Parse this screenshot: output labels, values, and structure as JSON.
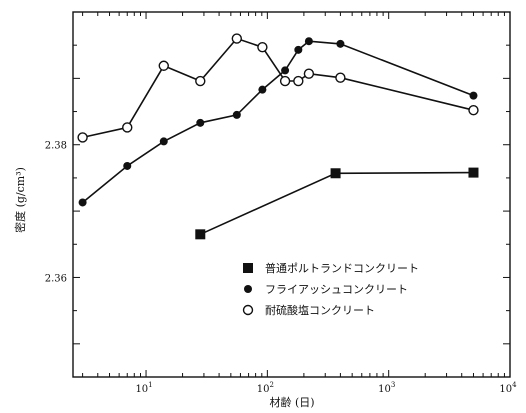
{
  "chart_data": {
    "type": "line",
    "xlabel": "材齢 (日)",
    "ylabel": "密度 (g/cm³)",
    "xscale": "log",
    "xlim": [
      2.5,
      10000
    ],
    "ylim": [
      2.345,
      2.4
    ],
    "x_tick_labels": [
      {
        "value": 10,
        "label": "10",
        "sup": "1"
      },
      {
        "value": 100,
        "label": "10",
        "sup": "2"
      },
      {
        "value": 1000,
        "label": "10",
        "sup": "3"
      },
      {
        "value": 10000,
        "label": "10",
        "sup": "4"
      }
    ],
    "y_tick_labels": [
      {
        "value": 2.36,
        "label": "2.36"
      },
      {
        "value": 2.38,
        "label": "2.38"
      }
    ],
    "grid": false,
    "legend_position": "bottom-right",
    "series": [
      {
        "name": "普通ポルトランドコンクリート",
        "marker": "filled-square",
        "x": [
          28,
          365,
          5000
        ],
        "y": [
          2.3665,
          2.3757,
          2.3758
        ]
      },
      {
        "name": "フライアッシュコンクリート",
        "marker": "filled-circle",
        "x": [
          3,
          7,
          14,
          28,
          56,
          91,
          140,
          180,
          220,
          400,
          5000
        ],
        "y": [
          2.3713,
          2.3768,
          2.3805,
          2.3833,
          2.3845,
          2.3883,
          2.3912,
          2.3943,
          2.3956,
          2.3952,
          2.3874
        ]
      },
      {
        "name": "耐硫酸塩コンクリート",
        "marker": "open-circle",
        "x": [
          3,
          7,
          14,
          28,
          56,
          91,
          140,
          180,
          220,
          400,
          5000
        ],
        "y": [
          2.3811,
          2.3826,
          2.3919,
          2.3896,
          2.396,
          2.3947,
          2.3896,
          2.3896,
          2.3907,
          2.3901,
          2.3852
        ]
      }
    ]
  }
}
